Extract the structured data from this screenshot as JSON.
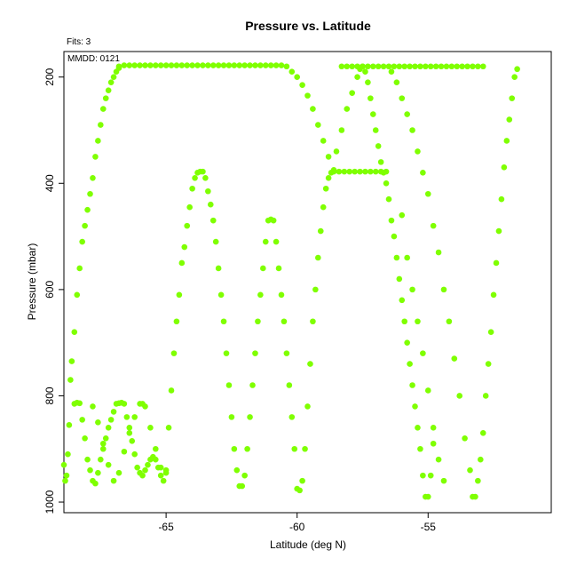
{
  "chart_data": {
    "type": "scatter",
    "title": "Pressure vs. Latitude",
    "xlabel": "Latitude (deg N)",
    "ylabel": "Pressure (mbar)",
    "annotations": {
      "fits": "Fits: 3",
      "mmdd": "MMDD: 0121"
    },
    "xlim": [
      -68.9,
      -50.3
    ],
    "ylim": [
      1020,
      152
    ],
    "y_reversed": true,
    "xticks": [
      -65,
      -60,
      -55
    ],
    "yticks": [
      200,
      400,
      600,
      800,
      1000
    ],
    "grid": false,
    "legend": "none",
    "point_color": "#7fff00",
    "series": [
      {
        "points": [
          [
            -68.9,
            930
          ],
          [
            -68.85,
            960
          ],
          [
            -68.8,
            950
          ],
          [
            -68.75,
            910
          ],
          [
            -68.7,
            855
          ],
          [
            -68.65,
            770
          ],
          [
            -68.6,
            735
          ],
          [
            -68.5,
            680
          ],
          [
            -68.4,
            610
          ],
          [
            -68.3,
            560
          ],
          [
            -68.2,
            510
          ],
          [
            -68.1,
            480
          ],
          [
            -68.0,
            450
          ],
          [
            -67.9,
            420
          ],
          [
            -67.8,
            390
          ],
          [
            -67.7,
            350
          ],
          [
            -67.6,
            320
          ],
          [
            -67.5,
            290
          ],
          [
            -67.4,
            260
          ],
          [
            -67.3,
            240
          ],
          [
            -67.2,
            225
          ],
          [
            -67.1,
            210
          ],
          [
            -67.0,
            200
          ],
          [
            -66.9,
            190
          ],
          [
            -66.8,
            183
          ],
          [
            -68.5,
            815
          ],
          [
            -68.4,
            813
          ],
          [
            -68.3,
            814
          ],
          [
            -68.2,
            845
          ],
          [
            -68.1,
            880
          ],
          [
            -68.0,
            920
          ],
          [
            -67.9,
            940
          ],
          [
            -67.8,
            960
          ],
          [
            -67.7,
            965
          ],
          [
            -67.6,
            945
          ],
          [
            -67.5,
            920
          ],
          [
            -67.4,
            900
          ],
          [
            -67.3,
            880
          ],
          [
            -67.2,
            860
          ],
          [
            -67.1,
            845
          ],
          [
            -67.0,
            830
          ],
          [
            -66.9,
            815
          ],
          [
            -66.8,
            814
          ],
          [
            -66.7,
            813
          ],
          [
            -66.6,
            815
          ],
          [
            -66.5,
            840
          ],
          [
            -66.4,
            860
          ],
          [
            -66.3,
            885
          ],
          [
            -66.2,
            910
          ],
          [
            -66.1,
            935
          ],
          [
            -66.0,
            945
          ],
          [
            -65.9,
            950
          ],
          [
            -65.8,
            940
          ],
          [
            -65.7,
            930
          ],
          [
            -65.6,
            920
          ],
          [
            -65.5,
            915
          ],
          [
            -65.4,
            920
          ],
          [
            -65.3,
            935
          ],
          [
            -65.2,
            950
          ],
          [
            -65.1,
            960
          ],
          [
            -65.0,
            940
          ],
          [
            -67.8,
            820
          ],
          [
            -67.6,
            850
          ],
          [
            -67.4,
            890
          ],
          [
            -67.2,
            930
          ],
          [
            -67.0,
            960
          ],
          [
            -66.8,
            945
          ],
          [
            -66.6,
            905
          ],
          [
            -66.4,
            870
          ],
          [
            -66.2,
            840
          ],
          [
            -66.0,
            815
          ],
          [
            -65.9,
            815
          ],
          [
            -65.8,
            820
          ],
          [
            -65.6,
            860
          ],
          [
            -65.4,
            900
          ],
          [
            -65.2,
            935
          ],
          [
            -65.0,
            945
          ],
          [
            -64.9,
            860
          ],
          [
            -64.8,
            790
          ],
          [
            -64.7,
            720
          ],
          [
            -64.6,
            660
          ],
          [
            -64.5,
            610
          ],
          [
            -64.4,
            550
          ],
          [
            -64.3,
            520
          ],
          [
            -64.2,
            480
          ],
          [
            -64.1,
            445
          ],
          [
            -64.0,
            410
          ],
          [
            -63.9,
            390
          ],
          [
            -63.8,
            380
          ],
          [
            -63.7,
            378
          ],
          [
            -63.6,
            378
          ],
          [
            -63.5,
            390
          ],
          [
            -63.4,
            415
          ],
          [
            -63.3,
            440
          ],
          [
            -63.2,
            470
          ],
          [
            -63.1,
            510
          ],
          [
            -63.0,
            560
          ],
          [
            -62.9,
            610
          ],
          [
            -62.8,
            660
          ],
          [
            -62.7,
            720
          ],
          [
            -62.6,
            780
          ],
          [
            -62.5,
            840
          ],
          [
            -62.4,
            900
          ],
          [
            -62.3,
            940
          ],
          [
            -62.2,
            970
          ],
          [
            -62.1,
            970
          ],
          [
            -62.0,
            950
          ],
          [
            -61.9,
            900
          ],
          [
            -61.8,
            840
          ],
          [
            -61.7,
            780
          ],
          [
            -61.6,
            720
          ],
          [
            -61.5,
            660
          ],
          [
            -61.4,
            610
          ],
          [
            -61.3,
            560
          ],
          [
            -61.2,
            510
          ],
          [
            -61.1,
            470
          ],
          [
            -61.0,
            468
          ],
          [
            -60.9,
            470
          ],
          [
            -60.8,
            510
          ],
          [
            -60.7,
            560
          ],
          [
            -60.6,
            610
          ],
          [
            -60.5,
            660
          ],
          [
            -60.4,
            720
          ],
          [
            -60.3,
            780
          ],
          [
            -60.2,
            840
          ],
          [
            -60.1,
            900
          ],
          [
            -60.0,
            975
          ],
          [
            -59.9,
            978
          ],
          [
            -59.8,
            960
          ],
          [
            -59.7,
            900
          ],
          [
            -59.6,
            820
          ],
          [
            -59.5,
            740
          ],
          [
            -59.4,
            660
          ],
          [
            -59.3,
            600
          ],
          [
            -59.2,
            540
          ],
          [
            -59.1,
            490
          ],
          [
            -59.0,
            445
          ],
          [
            -58.9,
            410
          ],
          [
            -58.8,
            390
          ],
          [
            -58.7,
            380
          ],
          [
            -66.8,
            180
          ],
          [
            -66.6,
            178
          ],
          [
            -66.4,
            178
          ],
          [
            -66.2,
            178
          ],
          [
            -66.0,
            178
          ],
          [
            -65.8,
            178
          ],
          [
            -65.6,
            178
          ],
          [
            -65.4,
            178
          ],
          [
            -65.2,
            178
          ],
          [
            -65.0,
            178
          ],
          [
            -64.8,
            178
          ],
          [
            -64.6,
            178
          ],
          [
            -64.4,
            178
          ],
          [
            -64.2,
            178
          ],
          [
            -64.0,
            178
          ],
          [
            -63.8,
            178
          ],
          [
            -63.6,
            178
          ],
          [
            -63.4,
            178
          ],
          [
            -63.2,
            178
          ],
          [
            -63.0,
            178
          ],
          [
            -62.8,
            178
          ],
          [
            -62.6,
            178
          ],
          [
            -62.4,
            178
          ],
          [
            -62.2,
            178
          ],
          [
            -62.0,
            178
          ],
          [
            -61.8,
            178
          ],
          [
            -61.6,
            178
          ],
          [
            -61.4,
            178
          ],
          [
            -61.2,
            178
          ],
          [
            -61.0,
            178
          ],
          [
            -60.8,
            178
          ],
          [
            -60.6,
            178
          ],
          [
            -60.4,
            180
          ],
          [
            -60.2,
            190
          ],
          [
            -60.0,
            200
          ],
          [
            -59.8,
            215
          ],
          [
            -59.6,
            235
          ],
          [
            -59.4,
            260
          ],
          [
            -59.2,
            290
          ],
          [
            -59.0,
            320
          ],
          [
            -58.8,
            350
          ],
          [
            -58.6,
            375
          ],
          [
            -58.6,
            378
          ],
          [
            -58.4,
            378
          ],
          [
            -58.2,
            378
          ],
          [
            -58.0,
            378
          ],
          [
            -57.8,
            378
          ],
          [
            -57.6,
            378
          ],
          [
            -57.4,
            378
          ],
          [
            -57.2,
            378
          ],
          [
            -57.0,
            378
          ],
          [
            -56.8,
            378
          ],
          [
            -56.6,
            378
          ],
          [
            -58.5,
            340
          ],
          [
            -58.3,
            300
          ],
          [
            -58.1,
            260
          ],
          [
            -57.9,
            230
          ],
          [
            -57.7,
            200
          ],
          [
            -57.6,
            185
          ],
          [
            -57.5,
            180
          ],
          [
            -57.4,
            190
          ],
          [
            -57.3,
            210
          ],
          [
            -57.2,
            240
          ],
          [
            -57.1,
            270
          ],
          [
            -57.0,
            300
          ],
          [
            -56.9,
            330
          ],
          [
            -56.8,
            360
          ],
          [
            -56.7,
            380
          ],
          [
            -56.6,
            400
          ],
          [
            -56.5,
            430
          ],
          [
            -56.4,
            470
          ],
          [
            -56.3,
            500
          ],
          [
            -56.2,
            540
          ],
          [
            -56.1,
            580
          ],
          [
            -56.0,
            620
          ],
          [
            -55.9,
            660
          ],
          [
            -55.8,
            700
          ],
          [
            -55.7,
            740
          ],
          [
            -55.6,
            780
          ],
          [
            -55.5,
            820
          ],
          [
            -55.4,
            860
          ],
          [
            -55.3,
            900
          ],
          [
            -55.2,
            950
          ],
          [
            -55.1,
            990
          ],
          [
            -55.0,
            990
          ],
          [
            -54.9,
            950
          ],
          [
            -54.8,
            890
          ],
          [
            -58.3,
            180
          ],
          [
            -58.1,
            180
          ],
          [
            -57.9,
            180
          ],
          [
            -57.7,
            180
          ],
          [
            -57.5,
            180
          ],
          [
            -57.3,
            180
          ],
          [
            -57.1,
            180
          ],
          [
            -56.9,
            180
          ],
          [
            -56.7,
            180
          ],
          [
            -56.5,
            180
          ],
          [
            -56.3,
            180
          ],
          [
            -56.1,
            180
          ],
          [
            -55.9,
            180
          ],
          [
            -55.7,
            180
          ],
          [
            -55.5,
            180
          ],
          [
            -55.3,
            180
          ],
          [
            -55.1,
            180
          ],
          [
            -54.9,
            180
          ],
          [
            -54.7,
            180
          ],
          [
            -54.5,
            180
          ],
          [
            -54.3,
            180
          ],
          [
            -54.1,
            180
          ],
          [
            -53.9,
            180
          ],
          [
            -53.7,
            180
          ],
          [
            -53.5,
            180
          ],
          [
            -53.3,
            180
          ],
          [
            -53.1,
            180
          ],
          [
            -52.9,
            180
          ],
          [
            -56.4,
            190
          ],
          [
            -56.2,
            210
          ],
          [
            -56.0,
            240
          ],
          [
            -55.8,
            270
          ],
          [
            -55.6,
            300
          ],
          [
            -55.4,
            340
          ],
          [
            -55.2,
            380
          ],
          [
            -55.0,
            420
          ],
          [
            -54.8,
            480
          ],
          [
            -54.6,
            530
          ],
          [
            -54.4,
            600
          ],
          [
            -54.2,
            660
          ],
          [
            -54.0,
            730
          ],
          [
            -53.8,
            800
          ],
          [
            -53.6,
            880
          ],
          [
            -53.4,
            940
          ],
          [
            -53.3,
            990
          ],
          [
            -53.2,
            990
          ],
          [
            -53.1,
            960
          ],
          [
            -53.0,
            920
          ],
          [
            -52.9,
            870
          ],
          [
            -52.8,
            800
          ],
          [
            -52.7,
            740
          ],
          [
            -52.6,
            680
          ],
          [
            -52.5,
            610
          ],
          [
            -52.4,
            550
          ],
          [
            -52.3,
            490
          ],
          [
            -52.2,
            430
          ],
          [
            -52.1,
            370
          ],
          [
            -52.0,
            320
          ],
          [
            -51.9,
            280
          ],
          [
            -51.8,
            240
          ],
          [
            -51.7,
            200
          ],
          [
            -51.6,
            185
          ],
          [
            -56.0,
            460
          ],
          [
            -55.8,
            540
          ],
          [
            -55.6,
            600
          ],
          [
            -55.4,
            660
          ],
          [
            -55.2,
            720
          ],
          [
            -55.0,
            790
          ],
          [
            -54.8,
            860
          ],
          [
            -54.6,
            920
          ],
          [
            -54.4,
            960
          ]
        ]
      }
    ]
  }
}
